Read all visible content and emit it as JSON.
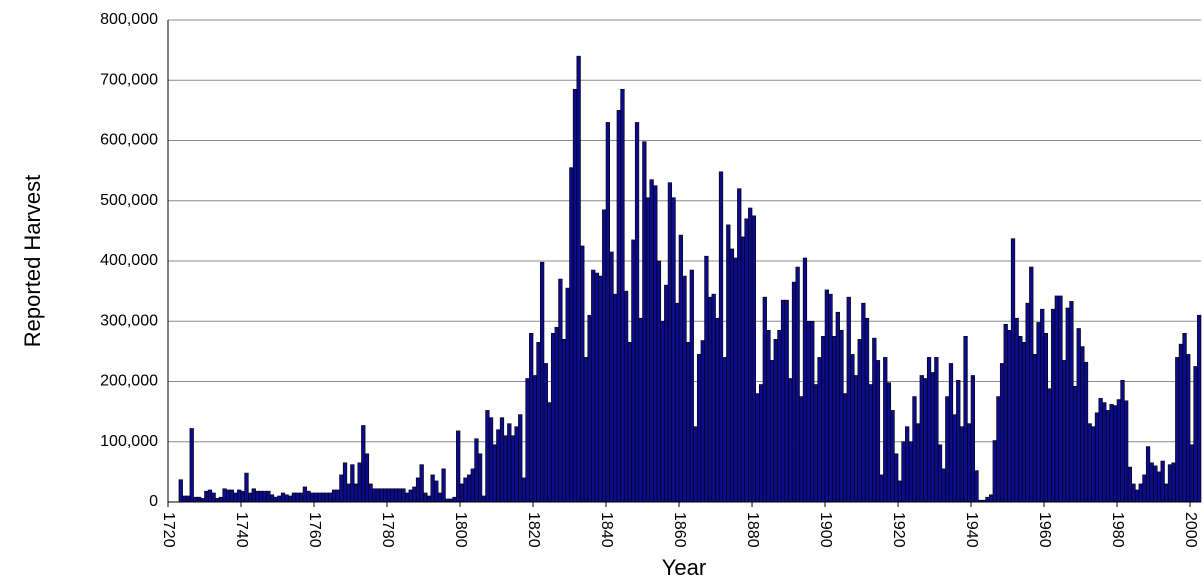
{
  "chart_data": {
    "type": "bar",
    "x_label": "Year",
    "y_label": "Reported Harvest",
    "color": "#0c0c8a",
    "grid": true,
    "xlim": [
      1720,
      2003
    ],
    "xticks": [
      1720,
      1740,
      1760,
      1780,
      1800,
      1820,
      1840,
      1860,
      1880,
      1900,
      1920,
      1940,
      1960,
      1980,
      2000
    ],
    "ylim": [
      0,
      800000
    ],
    "yticks": [
      0,
      {
        "value": 100000,
        "label": "100,000"
      },
      {
        "value": 200000,
        "label": "200,000"
      },
      {
        "value": 300000,
        "label": "300,000"
      },
      {
        "value": 400000,
        "label": "400,000"
      },
      {
        "value": 500000,
        "label": "500,000"
      },
      {
        "value": 600000,
        "label": "600,000"
      },
      {
        "value": 700000,
        "label": "700,000"
      },
      {
        "value": 800000,
        "label": "800,000"
      }
    ],
    "x": [
      1723,
      1724,
      1725,
      1726,
      1727,
      1728,
      1729,
      1730,
      1731,
      1732,
      1733,
      1734,
      1735,
      1736,
      1737,
      1738,
      1739,
      1740,
      1741,
      1742,
      1743,
      1744,
      1745,
      1746,
      1747,
      1748,
      1749,
      1750,
      1751,
      1752,
      1753,
      1754,
      1755,
      1756,
      1757,
      1758,
      1759,
      1760,
      1761,
      1762,
      1763,
      1764,
      1765,
      1766,
      1767,
      1768,
      1769,
      1770,
      1771,
      1772,
      1773,
      1774,
      1775,
      1776,
      1777,
      1778,
      1779,
      1780,
      1781,
      1782,
      1783,
      1784,
      1785,
      1786,
      1787,
      1788,
      1789,
      1790,
      1791,
      1792,
      1793,
      1794,
      1795,
      1796,
      1797,
      1798,
      1799,
      1800,
      1801,
      1802,
      1803,
      1804,
      1805,
      1806,
      1807,
      1808,
      1809,
      1810,
      1811,
      1812,
      1813,
      1814,
      1815,
      1816,
      1817,
      1818,
      1819,
      1820,
      1821,
      1822,
      1823,
      1824,
      1825,
      1826,
      1827,
      1828,
      1829,
      1830,
      1831,
      1832,
      1833,
      1834,
      1835,
      1836,
      1837,
      1838,
      1839,
      1840,
      1841,
      1842,
      1843,
      1844,
      1845,
      1846,
      1847,
      1848,
      1849,
      1850,
      1851,
      1852,
      1853,
      1854,
      1855,
      1856,
      1857,
      1858,
      1859,
      1860,
      1861,
      1862,
      1863,
      1864,
      1865,
      1866,
      1867,
      1868,
      1869,
      1870,
      1871,
      1872,
      1873,
      1874,
      1875,
      1876,
      1877,
      1878,
      1879,
      1880,
      1881,
      1882,
      1883,
      1884,
      1885,
      1886,
      1887,
      1888,
      1889,
      1890,
      1891,
      1892,
      1893,
      1894,
      1895,
      1896,
      1897,
      1898,
      1899,
      1900,
      1901,
      1902,
      1903,
      1904,
      1905,
      1906,
      1907,
      1908,
      1909,
      1910,
      1911,
      1912,
      1913,
      1914,
      1915,
      1916,
      1917,
      1918,
      1919,
      1920,
      1921,
      1922,
      1923,
      1924,
      1925,
      1926,
      1927,
      1928,
      1929,
      1930,
      1931,
      1932,
      1933,
      1934,
      1935,
      1936,
      1937,
      1938,
      1939,
      1940,
      1941,
      1942,
      1943,
      1944,
      1945,
      1946,
      1947,
      1948,
      1949,
      1950,
      1951,
      1952,
      1953,
      1954,
      1955,
      1956,
      1957,
      1958,
      1959,
      1960,
      1961,
      1962,
      1963,
      1964,
      1965,
      1966,
      1967,
      1968,
      1969,
      1970,
      1971,
      1972,
      1973,
      1974,
      1975,
      1976,
      1977,
      1978,
      1979,
      1980,
      1981,
      1982,
      1983,
      1984,
      1985,
      1986,
      1987,
      1988,
      1989,
      1990,
      1991,
      1992,
      1993,
      1994,
      1995,
      1996,
      1997,
      1998,
      1999,
      2000,
      2001,
      2002
    ],
    "values": [
      37000,
      10000,
      10000,
      122000,
      8000,
      8000,
      6000,
      18000,
      20000,
      15000,
      6000,
      8000,
      22000,
      20000,
      20000,
      15000,
      20000,
      18000,
      48000,
      15000,
      22000,
      18000,
      18000,
      18000,
      18000,
      12000,
      8000,
      10000,
      15000,
      12000,
      10000,
      15000,
      15000,
      15000,
      25000,
      18000,
      15000,
      15000,
      15000,
      15000,
      15000,
      15000,
      20000,
      20000,
      45000,
      65000,
      30000,
      62000,
      30000,
      65000,
      127000,
      80000,
      30000,
      22000,
      22000,
      22000,
      22000,
      22000,
      22000,
      22000,
      22000,
      22000,
      15000,
      20000,
      25000,
      40000,
      62000,
      15000,
      10000,
      45000,
      35000,
      15000,
      55000,
      5000,
      5000,
      8000,
      118000,
      30000,
      40000,
      45000,
      55000,
      105000,
      80000,
      10000,
      152000,
      140000,
      95000,
      120000,
      140000,
      110000,
      130000,
      110000,
      125000,
      145000,
      40000,
      205000,
      280000,
      210000,
      265000,
      398000,
      230000,
      165000,
      280000,
      290000,
      370000,
      270000,
      355000,
      555000,
      685000,
      740000,
      425000,
      240000,
      310000,
      385000,
      380000,
      375000,
      485000,
      630000,
      415000,
      345000,
      650000,
      685000,
      350000,
      265000,
      435000,
      630000,
      305000,
      598000,
      505000,
      535000,
      525000,
      400000,
      300000,
      360000,
      530000,
      505000,
      330000,
      443000,
      375000,
      265000,
      385000,
      125000,
      245000,
      268000,
      408000,
      340000,
      345000,
      305000,
      548000,
      240000,
      460000,
      420000,
      405000,
      520000,
      440000,
      470000,
      488000,
      475000,
      180000,
      195000,
      340000,
      285000,
      235000,
      270000,
      285000,
      335000,
      335000,
      205000,
      365000,
      390000,
      175000,
      405000,
      300000,
      300000,
      195000,
      240000,
      275000,
      352000,
      345000,
      275000,
      315000,
      285000,
      180000,
      340000,
      245000,
      210000,
      270000,
      330000,
      305000,
      195000,
      272000,
      235000,
      45000,
      240000,
      198000,
      152000,
      80000,
      35000,
      100000,
      125000,
      100000,
      175000,
      130000,
      210000,
      205000,
      240000,
      215000,
      240000,
      95000,
      55000,
      175000,
      230000,
      145000,
      202000,
      125000,
      275000,
      130000,
      210000,
      52000,
      3000,
      3000,
      8000,
      12000,
      102000,
      175000,
      230000,
      295000,
      285000,
      437000,
      305000,
      275000,
      265000,
      330000,
      390000,
      245000,
      298000,
      320000,
      280000,
      188000,
      320000,
      342000,
      342000,
      235000,
      322000,
      333000,
      192000,
      288000,
      258000,
      232000,
      130000,
      125000,
      148000,
      172000,
      165000,
      152000,
      162000,
      160000,
      170000,
      202000,
      168000,
      58000,
      30000,
      20000,
      30000,
      45000,
      92000,
      65000,
      60000,
      50000,
      68000,
      30000,
      62000,
      65000,
      240000,
      262000,
      280000,
      245000,
      95000,
      225000,
      310000
    ]
  }
}
